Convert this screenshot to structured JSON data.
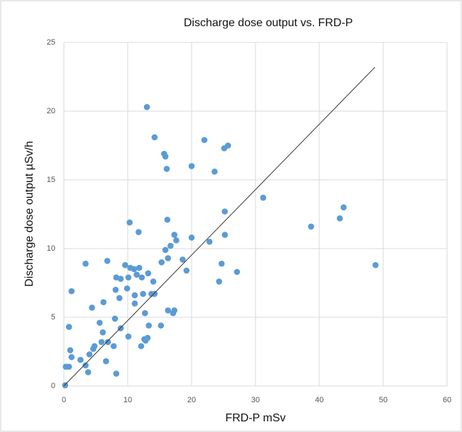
{
  "chart_data": {
    "type": "scatter",
    "title": "Discharge dose output vs. FRD-P",
    "x_label": "FRD-P mSv",
    "y_label": "Discharge dose output µSv/h",
    "color": "#5b9bd5",
    "x": [
      0.2,
      0.3,
      0.8,
      0.8,
      1.0,
      1.2,
      1.2,
      2.6,
      3.4,
      3.4,
      3.8,
      4.0,
      4.6,
      4.8,
      4.4,
      5.6,
      5.9,
      6.1,
      6.2,
      6.6,
      6.9,
      6.8,
      7.8,
      8.0,
      8.1,
      8.2,
      8.2,
      8.7,
      8.9,
      8.9,
      9.6,
      9.9,
      10.1,
      10.1,
      10.3,
      10.4,
      11.0,
      11.1,
      11.1,
      11.4,
      11.7,
      11.8,
      12.1,
      12.2,
      12.4,
      12.6,
      12.7,
      12.8,
      13.0,
      13.1,
      13.2,
      13.3,
      13.7,
      14.0,
      14.2,
      14.2,
      15.2,
      15.3,
      15.7,
      15.9,
      15.9,
      16.1,
      16.2,
      16.3,
      16.3,
      16.7,
      17.1,
      17.3,
      17.3,
      17.6,
      18.6,
      19.2,
      20.0,
      20.0,
      22.0,
      22.8,
      23.6,
      24.3,
      24.7,
      25.1,
      25.2,
      25.2,
      25.7,
      27.1,
      31.2,
      38.7,
      43.2,
      43.8,
      48.8
    ],
    "values": [
      0.05,
      1.4,
      1.4,
      4.3,
      2.6,
      2.1,
      6.9,
      1.9,
      1.5,
      8.9,
      1.0,
      2.3,
      2.7,
      2.9,
      5.7,
      4.6,
      3.2,
      3.9,
      6.1,
      1.8,
      3.2,
      9.1,
      2.9,
      4.9,
      7.0,
      7.9,
      0.9,
      6.4,
      4.2,
      7.8,
      8.8,
      7.1,
      7.9,
      3.6,
      11.9,
      8.6,
      8.5,
      6.0,
      6.6,
      8.1,
      11.2,
      8.6,
      2.9,
      7.9,
      6.7,
      3.4,
      5.3,
      3.3,
      20.3,
      3.5,
      8.2,
      4.4,
      6.7,
      7.6,
      18.1,
      6.7,
      4.4,
      9.0,
      16.9,
      16.7,
      9.9,
      15.8,
      12.1,
      9.3,
      5.5,
      10.2,
      5.3,
      11.0,
      5.5,
      10.6,
      9.2,
      8.4,
      10.8,
      16.0,
      17.9,
      10.5,
      15.6,
      7.6,
      8.9,
      17.3,
      12.7,
      11.0,
      17.5,
      8.3,
      13.7,
      11.6,
      12.2,
      13.0,
      8.8
    ],
    "trendline": {
      "x": [
        0,
        48.7
      ],
      "values": [
        0,
        23.2
      ],
      "color": "#333333"
    },
    "xlim": [
      0,
      60
    ],
    "xticks": [
      0,
      10,
      20,
      30,
      40,
      50,
      60
    ],
    "ylim": [
      0,
      25
    ],
    "yticks": [
      0,
      5,
      10,
      15,
      20,
      25
    ],
    "grid": true
  }
}
